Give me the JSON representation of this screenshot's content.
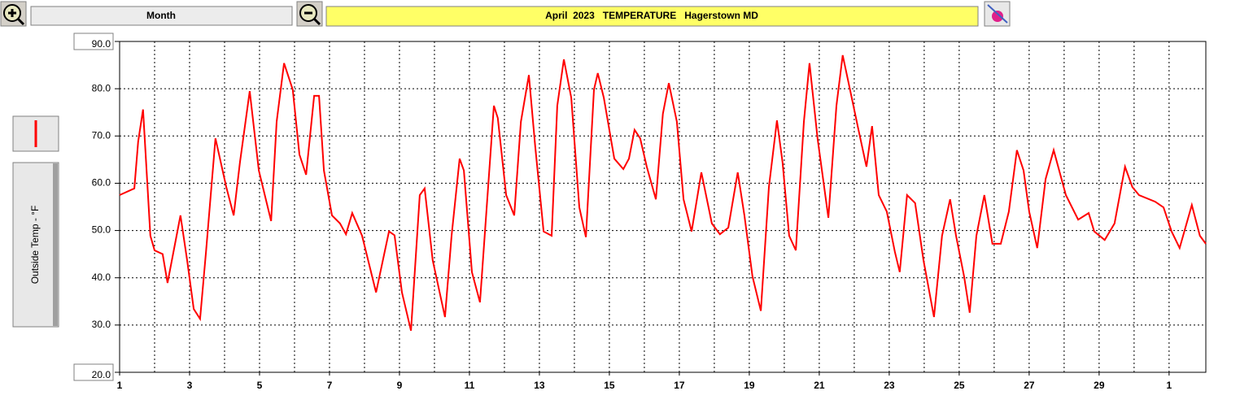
{
  "toolbar": {
    "period": "Month"
  },
  "chart_data": {
    "type": "line",
    "title": "April  2023   TEMPERATURE   Hagerstown MD",
    "y_label": "Outside Temp - °F",
    "x": [
      1.0,
      1.42,
      1.53,
      1.67,
      1.88,
      2.0,
      2.23,
      2.37,
      2.74,
      2.93,
      3.12,
      3.3,
      3.47,
      3.74,
      4.05,
      4.26,
      4.44,
      4.72,
      4.98,
      5.33,
      5.49,
      5.7,
      5.95,
      6.14,
      6.33,
      6.56,
      6.7,
      6.84,
      7.07,
      7.3,
      7.47,
      7.65,
      7.93,
      8.33,
      8.7,
      8.86,
      9.07,
      9.33,
      9.58,
      9.72,
      9.95,
      10.3,
      10.49,
      10.72,
      10.84,
      11.07,
      11.3,
      11.7,
      11.81,
      12.05,
      12.28,
      12.47,
      12.7,
      12.88,
      13.12,
      13.35,
      13.51,
      13.7,
      13.91,
      14.14,
      14.33,
      14.56,
      14.67,
      14.84,
      15.14,
      15.4,
      15.56,
      15.72,
      15.88,
      16.07,
      16.33,
      16.53,
      16.7,
      16.93,
      17.12,
      17.35,
      17.63,
      17.93,
      18.16,
      18.4,
      18.67,
      18.86,
      19.09,
      19.33,
      19.56,
      19.79,
      19.95,
      20.14,
      20.33,
      20.56,
      20.72,
      20.95,
      21.26,
      21.49,
      21.67,
      21.88,
      22.12,
      22.35,
      22.51,
      22.7,
      22.93,
      23.16,
      23.3,
      23.51,
      23.74,
      23.98,
      24.28,
      24.51,
      24.74,
      24.91,
      25.14,
      25.3,
      25.49,
      25.72,
      25.95,
      26.19,
      26.42,
      26.65,
      26.84,
      27.0,
      27.23,
      27.47,
      27.7,
      28.05,
      28.4,
      28.7,
      28.86,
      29.16,
      29.44,
      29.74,
      29.95,
      30.14,
      30.6,
      30.84,
      31.07,
      31.3,
      31.65,
      31.88,
      32.05
    ],
    "series": [
      {
        "color": "#ff0000",
        "values": [
          57.5,
          58.9,
          68.8,
          75.6,
          48.9,
          45.8,
          45.0,
          38.9,
          53.2,
          43.7,
          33.4,
          31.3,
          45.5,
          69.5,
          59.2,
          53.2,
          64.4,
          79.5,
          62.7,
          52.0,
          73.0,
          85.4,
          79.8,
          66.1,
          61.8,
          78.5,
          78.5,
          62.7,
          53.2,
          51.5,
          49.2,
          53.7,
          48.9,
          36.9,
          49.8,
          49.0,
          36.9,
          28.8,
          57.5,
          58.9,
          43.7,
          31.7,
          48.9,
          65.2,
          62.7,
          41.2,
          34.8,
          76.4,
          73.8,
          57.5,
          53.2,
          73.0,
          82.9,
          67.8,
          49.8,
          48.9,
          76.4,
          86.2,
          78.1,
          54.9,
          48.6,
          79.8,
          83.3,
          78.1,
          65.2,
          63.0,
          65.2,
          71.3,
          69.5,
          63.5,
          56.6,
          74.7,
          81.2,
          73.0,
          56.6,
          49.8,
          62.3,
          51.5,
          49.2,
          50.6,
          62.3,
          53.2,
          40.3,
          33.0,
          59.2,
          73.3,
          64.4,
          48.9,
          45.8,
          73.0,
          85.4,
          69.5,
          52.7,
          76.4,
          87.1,
          79.8,
          71.3,
          63.5,
          72.1,
          57.5,
          54.0,
          45.5,
          41.2,
          57.5,
          55.8,
          43.7,
          31.7,
          48.9,
          56.6,
          48.9,
          40.3,
          32.6,
          48.9,
          57.5,
          47.2,
          47.2,
          54.0,
          67.0,
          62.7,
          54.0,
          46.3,
          60.9,
          67.0,
          57.5,
          52.3,
          53.7,
          49.8,
          48.0,
          51.5,
          63.5,
          59.2,
          57.5,
          56.1,
          54.9,
          49.8,
          46.3,
          55.4,
          48.9,
          47.2
        ]
      }
    ],
    "xlim": [
      1,
      32.05
    ],
    "xticks": [
      1,
      3,
      5,
      7,
      9,
      11,
      13,
      15,
      17,
      19,
      21,
      23,
      25,
      27,
      29,
      {
        "value": 31,
        "label": "1"
      }
    ],
    "ylim": [
      20,
      90
    ],
    "yticks": [
      {
        "value": 20,
        "label": "20.0"
      },
      {
        "value": 30,
        "label": "30.0"
      },
      {
        "value": 40,
        "label": "40.0"
      },
      {
        "value": 50,
        "label": "50.0"
      },
      {
        "value": 60,
        "label": "60.0"
      },
      {
        "value": 70,
        "label": "70.0"
      },
      {
        "value": 80,
        "label": "80.0"
      },
      {
        "value": 90,
        "label": "90.0"
      }
    ],
    "grid": true
  }
}
